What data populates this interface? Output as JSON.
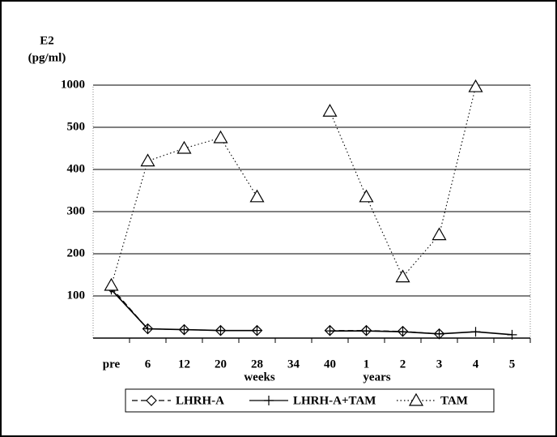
{
  "chart_data": {
    "type": "line",
    "y_label_lines": [
      "E2",
      "(pg/ml)"
    ],
    "x_group_labels": [
      "weeks",
      "years"
    ],
    "categories": [
      "pre",
      "6",
      "12",
      "20",
      "28",
      "34",
      "40",
      "1",
      "2",
      "3",
      "4",
      "5"
    ],
    "ylim": [
      0,
      1000
    ],
    "yticks": [
      100,
      200,
      300,
      400,
      500,
      1000
    ],
    "y_scale": "ticks-evenly-spaced",
    "grid": true,
    "legend": "bottom",
    "series": [
      {
        "name": "LHRH-A",
        "color": "#000000",
        "dash": "dashed",
        "marker": "diamond",
        "values": [
          120,
          22,
          20,
          18,
          18,
          null,
          18,
          18,
          16,
          10,
          null,
          null
        ]
      },
      {
        "name": "LHRH-A+TAM",
        "color": "#000000",
        "dash": "solid",
        "marker": "plus",
        "values": [
          115,
          22,
          20,
          18,
          18,
          null,
          17,
          17,
          15,
          10,
          15,
          8
        ]
      },
      {
        "name": "TAM",
        "color": "#000000",
        "dash": "dotted",
        "marker": "triangle",
        "values": [
          125,
          420,
          450,
          475,
          335,
          null,
          690,
          335,
          145,
          245,
          980,
          null
        ]
      }
    ]
  }
}
